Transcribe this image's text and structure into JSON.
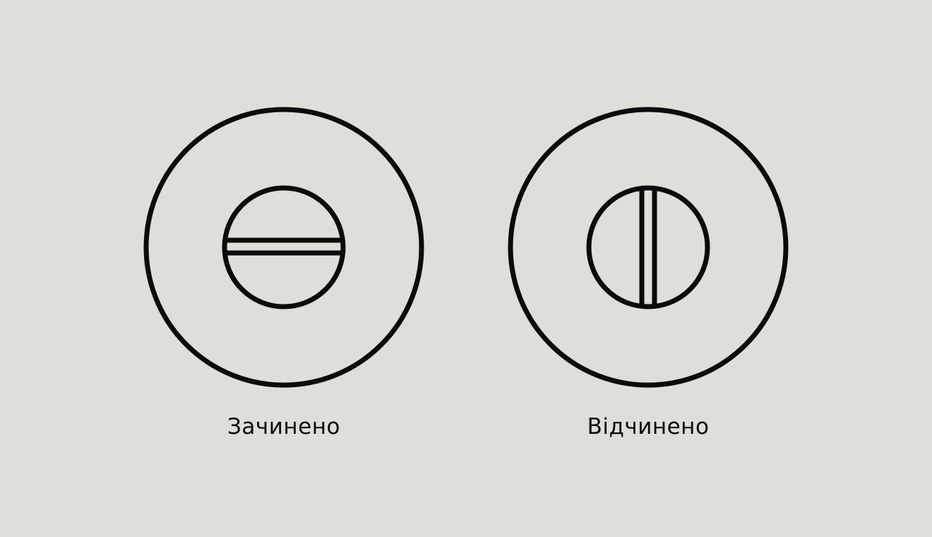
{
  "indicators": [
    {
      "state": "closed",
      "slot_orientation": "horizontal",
      "label": "Зачинено"
    },
    {
      "state": "open",
      "slot_orientation": "vertical",
      "label": "Відчинено"
    }
  ],
  "colors": {
    "background": "#e0ded8",
    "stroke": "#0b0b0b",
    "text": "#0b0b0b"
  },
  "icons": [
    "lock-closed-icon",
    "lock-open-icon"
  ]
}
